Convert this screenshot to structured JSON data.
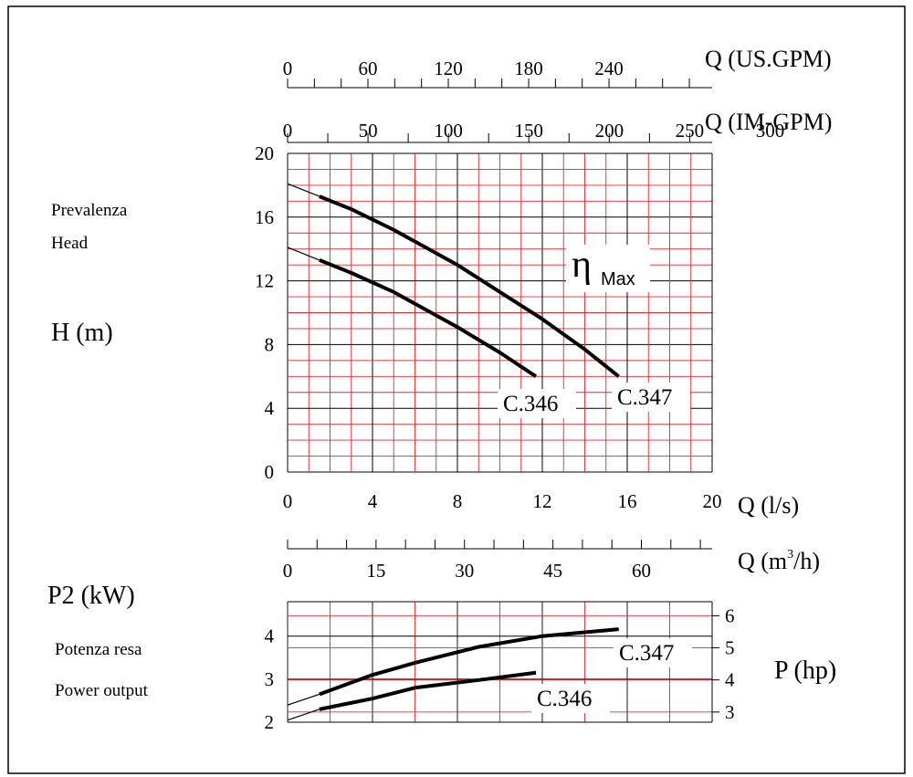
{
  "labels": {
    "us_gpm_unit": "Q (US.GPM)",
    "im_gpm_unit": "Q (IM-GPM)",
    "ls_unit": "Q (l/s)",
    "m3h_unit_q": "Q (m",
    "m3h_unit_sup": "3",
    "m3h_unit_end": "/h)",
    "head_it": "Prevalenza",
    "head_en": "Head",
    "head_unit": "H (m)",
    "power_unit": "P2 (kW)",
    "power_it": "Potenza resa",
    "power_en": "Power output",
    "hp_unit": "P (hp)",
    "eta": "η",
    "eta_sub": "Max"
  },
  "colors": {
    "grid_red": "#e8262b",
    "grid_black": "#000000",
    "curve": "#000000"
  },
  "axes": {
    "us_gpm_ticks": [
      "0",
      "60",
      "120",
      "180",
      "240"
    ],
    "im_gpm_ticks": [
      "0",
      "50",
      "100",
      "150",
      "200",
      "250",
      "300"
    ],
    "ls_ticks": [
      "0",
      "4",
      "8",
      "12",
      "16",
      "20"
    ],
    "m3h_ticks": [
      "0",
      "15",
      "30",
      "45",
      "60"
    ],
    "head_ticks": [
      "0",
      "4",
      "8",
      "12",
      "16",
      "20"
    ],
    "kw_ticks": [
      "2",
      "3",
      "4"
    ],
    "hp_ticks": [
      "3",
      "4",
      "5",
      "6"
    ]
  },
  "chart_data": [
    {
      "type": "line",
      "name": "head-curves",
      "xlim": [
        0,
        20
      ],
      "ylim": [
        0,
        20
      ],
      "series": [
        {
          "name": "C.347",
          "points": [
            [
              0,
              18.1
            ],
            [
              1.5,
              17.3
            ],
            [
              3,
              16.5
            ],
            [
              5,
              15.2
            ],
            [
              8,
              13.0
            ],
            [
              10,
              11.3
            ],
            [
              12,
              9.6
            ],
            [
              14,
              7.7
            ],
            [
              15.6,
              6.0
            ]
          ]
        },
        {
          "name": "C.346",
          "points": [
            [
              0,
              14.1
            ],
            [
              1.5,
              13.3
            ],
            [
              3,
              12.5
            ],
            [
              5,
              11.3
            ],
            [
              8,
              9.1
            ],
            [
              10,
              7.5
            ],
            [
              11.7,
              6.0
            ]
          ]
        }
      ]
    },
    {
      "type": "line",
      "name": "power-curves",
      "xlim": [
        0,
        20
      ],
      "ylim": [
        2,
        4.8
      ],
      "series": [
        {
          "name": "C.347",
          "points": [
            [
              0,
              2.4
            ],
            [
              1.5,
              2.65
            ],
            [
              4,
              3.1
            ],
            [
              6,
              3.38
            ],
            [
              9,
              3.75
            ],
            [
              12,
              4.0
            ],
            [
              15.6,
              4.16
            ]
          ]
        },
        {
          "name": "C.346",
          "points": [
            [
              0,
              2.05
            ],
            [
              1.5,
              2.3
            ],
            [
              4,
              2.55
            ],
            [
              6,
              2.8
            ],
            [
              9,
              2.98
            ],
            [
              11.7,
              3.15
            ]
          ]
        }
      ]
    }
  ]
}
